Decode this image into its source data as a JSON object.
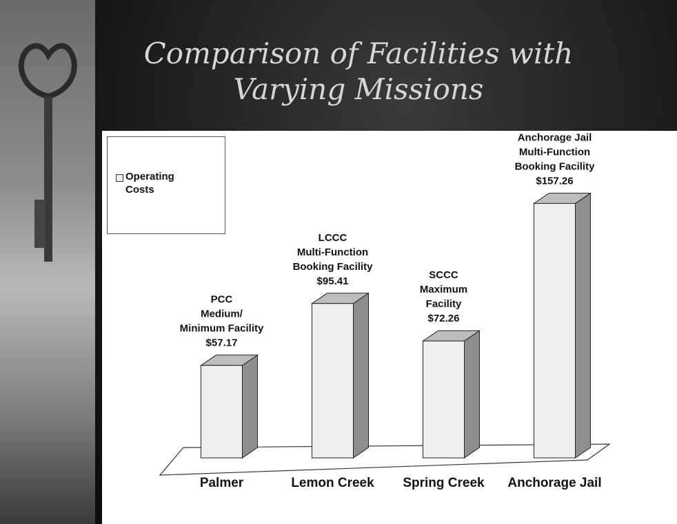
{
  "chart_data": {
    "type": "bar3d",
    "title": "Comparison of Facilities with Varying Missions",
    "categories": [
      "Palmer",
      "Lemon Creek",
      "Spring Creek",
      "Anchorage Jail"
    ],
    "series": [
      {
        "name": "Operating Costs",
        "color": "#efefef",
        "values": [
          57.17,
          95.41,
          72.26,
          157.26
        ],
        "value_labels": [
          "$57.17",
          "$95.41",
          "$72.26",
          "$157.26"
        ]
      }
    ],
    "annotations": [
      [
        "PCC",
        "Medium/",
        "Minimum Facility"
      ],
      [
        "LCCC",
        "Multi-Function",
        "Booking Facility"
      ],
      [
        "SCCC",
        "Maximum",
        "Facility"
      ],
      [
        "Anchorage Jail",
        "Multi-Function",
        "Booking Facility"
      ]
    ],
    "ylim": [
      0,
      160
    ],
    "legend": "top-left"
  }
}
